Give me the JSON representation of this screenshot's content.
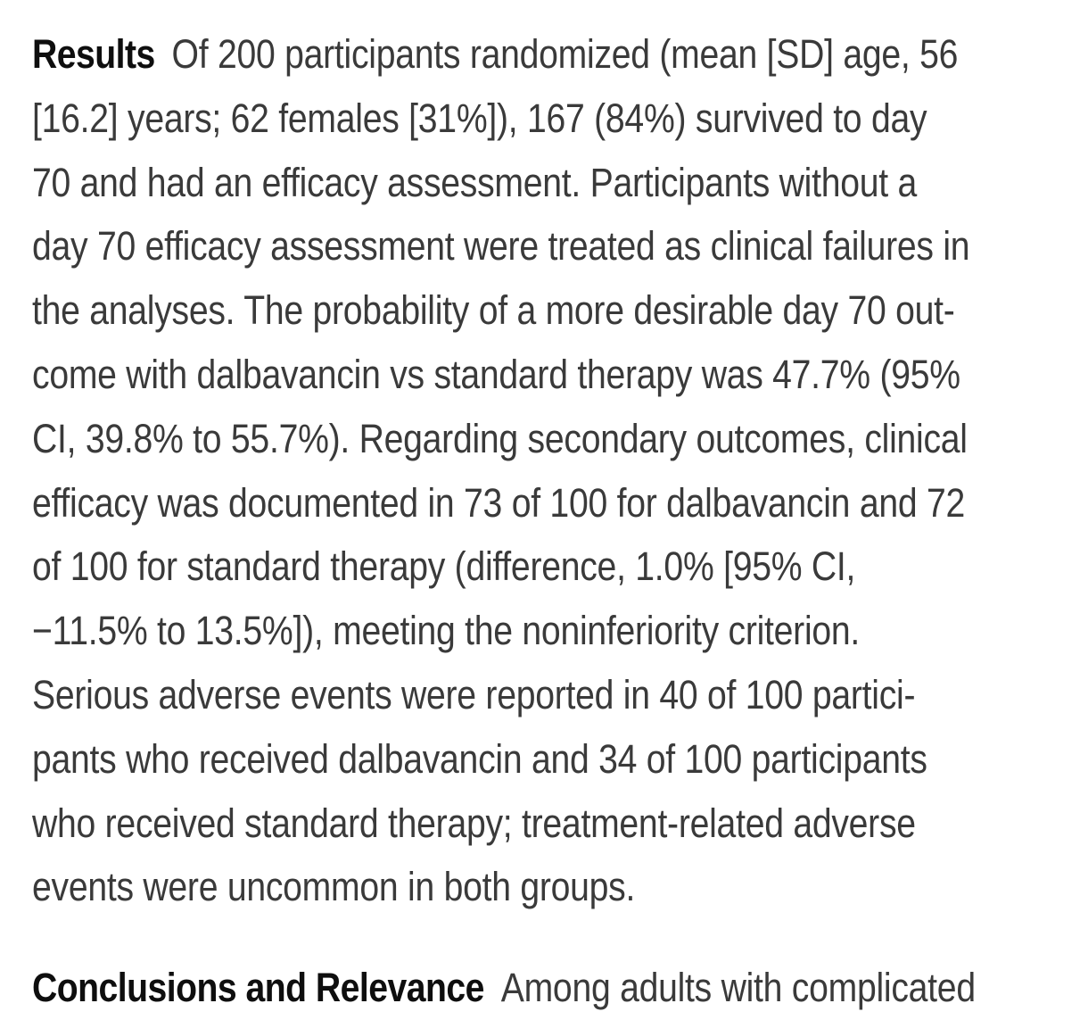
{
  "colors": {
    "background": "#ffffff",
    "body_text": "#3a3a3a",
    "section_label": "#0e0e0e"
  },
  "sections": [
    {
      "id": "results",
      "label": "Results",
      "lines": [
        "Of 200 participants randomized (mean [SD] age, 56",
        "[16.2] years; 62 females [31%]), 167 (84%) survived to day",
        "70 and had an efficacy assessment. Participants without a",
        "day 70 efficacy assessment were treated as clinical failures in",
        "the analyses. The probability of a more desirable day 70 out-",
        "come with dalbavancin vs standard therapy was 47.7% (95%",
        "CI, 39.8% to 55.7%). Regarding secondary outcomes, clinical",
        "efficacy was documented in 73 of 100 for dalbavancin and 72",
        "of 100 for standard therapy (difference, 1.0% [95% CI,",
        "−11.5% to 13.5%]), meeting the noninferiority criterion.",
        "Serious adverse events were reported in 40 of 100 partici-",
        "pants who received dalbavancin and 34 of 100 participants",
        "who received standard therapy; treatment-related adverse",
        "events were uncommon in both groups."
      ]
    },
    {
      "id": "conclusions",
      "label": "Conclusions and Relevance",
      "lines": [
        "Among adults with complicated"
      ]
    }
  ]
}
